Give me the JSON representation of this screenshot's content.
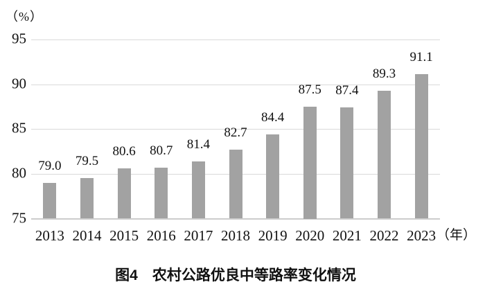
{
  "figure": {
    "y_axis_unit": "（%）",
    "x_axis_unit": "（年）",
    "caption": "图4　农村公路优良中等路率变化情况"
  },
  "chart_data": {
    "type": "bar",
    "title": "图4　农村公路优良中等路率变化情况",
    "categories": [
      "2013",
      "2014",
      "2015",
      "2016",
      "2017",
      "2018",
      "2019",
      "2020",
      "2021",
      "2022",
      "2023"
    ],
    "values": [
      79.0,
      79.5,
      80.6,
      80.7,
      81.4,
      82.7,
      84.4,
      87.5,
      87.4,
      89.3,
      91.1
    ],
    "value_labels": [
      "79.0",
      "79.5",
      "80.6",
      "80.7",
      "81.4",
      "82.7",
      "84.4",
      "87.5",
      "87.4",
      "89.3",
      "91.1"
    ],
    "ylabel_unit": "（%）",
    "xlabel_unit": "（年）",
    "yticks": [
      75,
      80,
      85,
      90,
      95
    ],
    "ylim": [
      75,
      95
    ],
    "grid": true,
    "legend_position": "none",
    "bar_color": "#a2a2a2",
    "gridline_color": "#d9d9d9",
    "baseline_color": "#cccccc",
    "text_color": "#111111"
  }
}
